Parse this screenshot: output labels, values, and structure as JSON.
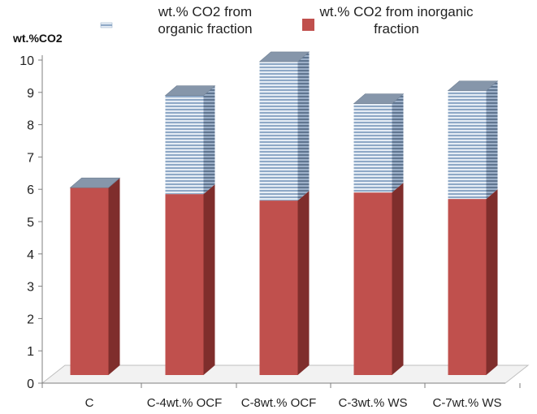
{
  "chart_data": {
    "type": "bar",
    "stacked": true,
    "three_d": true,
    "ylabel": "wt.%CO2",
    "ylim": [
      0,
      10
    ],
    "yticks": [
      "0",
      "1",
      "2",
      "3",
      "4",
      "5",
      "6",
      "7",
      "8",
      "9",
      "10"
    ],
    "categories": [
      "C",
      "C-4wt.% OCF",
      "C-8wt.% OCF",
      "C-3wt.% WS",
      "C-7wt.% WS"
    ],
    "series": [
      {
        "name": "wt.% CO2 from inorganic fraction",
        "legend_lines": [
          "wt.% CO2 from inorganic",
          "fraction"
        ],
        "pattern": "solid",
        "color": "#C0504D",
        "values": [
          5.8,
          5.6,
          5.4,
          5.65,
          5.45
        ]
      },
      {
        "name": "wt.% CO2 from organic fraction",
        "legend_lines": [
          "wt.% CO2 from",
          "organic fraction"
        ],
        "pattern": "horizontal-stripes",
        "color": "#8EA8C6",
        "values": [
          0.0,
          3.05,
          4.3,
          2.75,
          3.35
        ]
      }
    ],
    "legend_position": "top",
    "grid": false
  },
  "colors": {
    "inorganic_front": "#C0504D",
    "inorganic_side": "#7F2E2C",
    "organic_stripe_light": "#E6EDF5",
    "organic_stripe_dark": "#8EA8C6",
    "cap_top": "#8696AA",
    "floor": "#F2F2F2",
    "axis": "#7F7F7F"
  }
}
